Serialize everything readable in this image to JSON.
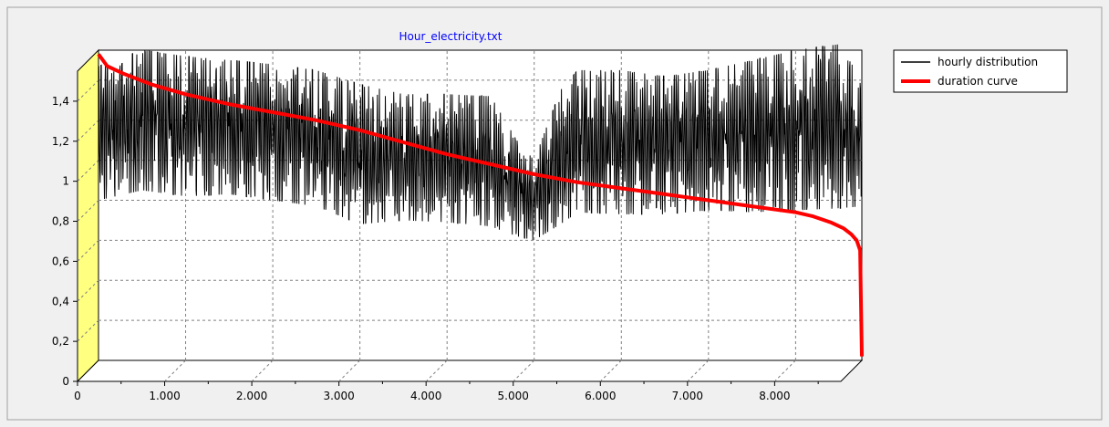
{
  "chart_data": {
    "type": "line",
    "title": "Hour_electricity.txt",
    "xlabel": "",
    "ylabel": "",
    "xlim": [
      0,
      8760
    ],
    "ylim": [
      0,
      1.55
    ],
    "x_ticks": [
      0,
      1000,
      2000,
      3000,
      4000,
      5000,
      6000,
      7000,
      8000
    ],
    "x_tick_labels": [
      "0",
      "1.000",
      "2.000",
      "3.000",
      "4.000",
      "5.000",
      "6.000",
      "7.000",
      "8.000"
    ],
    "y_ticks": [
      0,
      0.2,
      0.4,
      0.6,
      0.8,
      1.0,
      1.2,
      1.4
    ],
    "y_tick_labels": [
      "0",
      "0,2",
      "0,4",
      "0,6",
      "0,8",
      "1",
      "1,2",
      "1,4"
    ],
    "grid": true,
    "legend_position": "top-right",
    "series": [
      {
        "name": "hourly distribution",
        "color": "#000000",
        "description_envelope": {
          "x": [
            0,
            500,
            1000,
            1500,
            2000,
            2500,
            3000,
            3500,
            4000,
            4500,
            4800,
            5000,
            5300,
            5500,
            6000,
            6500,
            7000,
            7500,
            8000,
            8500,
            8760
          ],
          "upper": [
            1.47,
            1.55,
            1.52,
            1.5,
            1.48,
            1.45,
            1.38,
            1.33,
            1.33,
            1.32,
            1.1,
            1.0,
            1.35,
            1.45,
            1.45,
            1.42,
            1.45,
            1.5,
            1.55,
            1.58,
            1.4
          ],
          "lower": [
            0.8,
            0.85,
            0.82,
            0.83,
            0.8,
            0.77,
            0.68,
            0.7,
            0.69,
            0.67,
            0.62,
            0.6,
            0.68,
            0.74,
            0.73,
            0.73,
            0.75,
            0.74,
            0.75,
            0.76,
            0.77
          ]
        }
      },
      {
        "name": "duration curve",
        "color": "#ff0000",
        "x": [
          0,
          100,
          300,
          600,
          1000,
          1500,
          2000,
          2500,
          3000,
          3500,
          4000,
          4500,
          5000,
          5500,
          6000,
          6500,
          7000,
          7500,
          8000,
          8200,
          8400,
          8550,
          8640,
          8700,
          8740,
          8750,
          8760
        ],
        "y": [
          1.53,
          1.47,
          1.43,
          1.38,
          1.33,
          1.28,
          1.24,
          1.2,
          1.15,
          1.09,
          1.03,
          0.98,
          0.93,
          0.89,
          0.86,
          0.83,
          0.8,
          0.77,
          0.74,
          0.72,
          0.69,
          0.66,
          0.63,
          0.6,
          0.55,
          0.3,
          0.02
        ]
      }
    ]
  }
}
